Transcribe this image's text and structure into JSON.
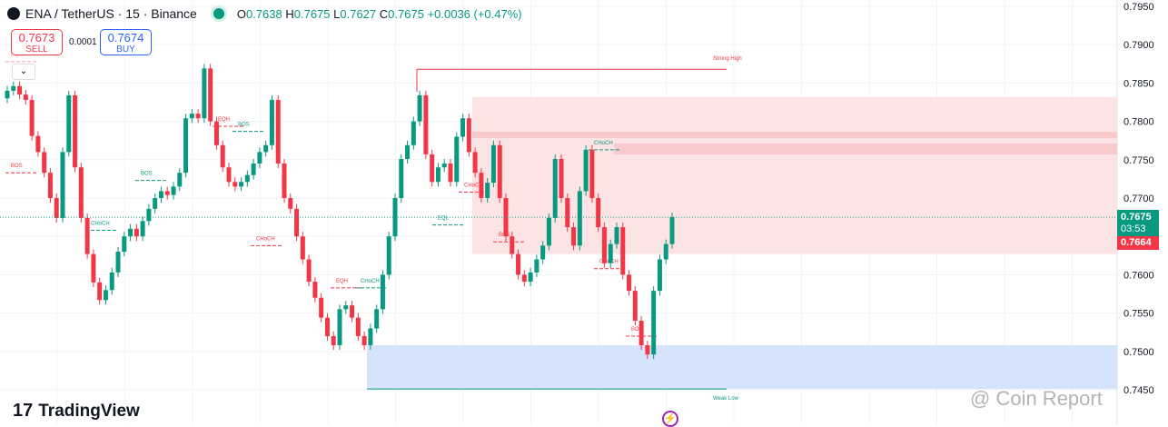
{
  "header": {
    "symbol": "ENA / TetherUS · 15 · Binance",
    "open_label": "O",
    "open": "0.7638",
    "high_label": "H",
    "high": "0.7675",
    "low_label": "L",
    "low": "0.7627",
    "close_label": "C",
    "close": "0.7675",
    "change": "+0.0036 (+0.47%)"
  },
  "trade": {
    "sell_price": "0.7673",
    "sell_label": "SELL",
    "spread": "0.0001",
    "buy_price": "0.7674",
    "buy_label": "BUY"
  },
  "price_labels": {
    "last": "0.7675",
    "countdown": "03:53",
    "other": "0.7664"
  },
  "logo": "TradingView",
  "watermark": "@ Coin Report",
  "colors": {
    "up": "#089981",
    "down": "#f23645",
    "supply_zone": "#fce4e4",
    "demand_zone": "#d6e4fb"
  },
  "chart_data": {
    "type": "candlestick",
    "ylim": [
      0.745,
      0.795
    ],
    "y_ticks": [
      "0.7950",
      "0.7900",
      "0.7850",
      "0.7800",
      "0.7750",
      "0.7700",
      "0.7650",
      "0.7600",
      "0.7550",
      "0.7500",
      "0.7450"
    ],
    "grid": true,
    "open_first": 0.783,
    "closes": [
      0.784,
      0.7846,
      0.7835,
      0.7828,
      0.7781,
      0.776,
      0.7733,
      0.77,
      0.7674,
      0.776,
      0.7834,
      0.774,
      0.7674,
      0.7627,
      0.759,
      0.7567,
      0.758,
      0.7603,
      0.763,
      0.765,
      0.766,
      0.765,
      0.767,
      0.7686,
      0.77,
      0.7709,
      0.7704,
      0.7715,
      0.7733,
      0.7804,
      0.781,
      0.7804,
      0.7869,
      0.78,
      0.7769,
      0.774,
      0.7721,
      0.7715,
      0.7721,
      0.773,
      0.7745,
      0.776,
      0.7769,
      0.7828,
      0.7745,
      0.77,
      0.7686,
      0.765,
      0.762,
      0.7591,
      0.757,
      0.7544,
      0.752,
      0.7508,
      0.7555,
      0.756,
      0.7544,
      0.752,
      0.7508,
      0.753,
      0.7555,
      0.76,
      0.765,
      0.77,
      0.7751,
      0.7769,
      0.78,
      0.7834,
      0.7757,
      0.7721,
      0.774,
      0.7745,
      0.7721,
      0.778,
      0.7804,
      0.776,
      0.7733,
      0.77,
      0.772,
      0.7769,
      0.77,
      0.765,
      0.7627,
      0.76,
      0.7591,
      0.7603,
      0.762,
      0.7638,
      0.7674,
      0.7751,
      0.77,
      0.7662,
      0.7638,
      0.7709,
      0.7763,
      0.77,
      0.7662,
      0.7615,
      0.764,
      0.7662,
      0.76,
      0.7579,
      0.754,
      0.7508,
      0.7496,
      0.7579,
      0.762,
      0.764,
      0.7675
    ],
    "zones": [
      {
        "kind": "supply",
        "top": 0.7832,
        "bottom": 0.7627
      },
      {
        "kind": "demand",
        "top": 0.7508,
        "bottom": 0.7451
      }
    ],
    "levels": [
      {
        "label": "Strong High",
        "price": 0.7868,
        "color": "#f23645"
      },
      {
        "label": "Weak Low",
        "price": 0.7451,
        "color": "#089981"
      }
    ],
    "structure_labels": [
      {
        "text": "EQH",
        "price": 0.7885,
        "color": "#f7a1a8"
      },
      {
        "text": "BOS",
        "price": 0.774,
        "color": "#f23645"
      },
      {
        "text": "BOS",
        "price": 0.773,
        "color": "#089981"
      },
      {
        "text": "CHoCH",
        "price": 0.7665,
        "color": "#089981"
      },
      {
        "text": "EQH",
        "price": 0.7796,
        "color": "#f23645"
      },
      {
        "text": "BOS",
        "price": 0.7794,
        "color": "#089981"
      },
      {
        "text": "CHoCH",
        "price": 0.7645,
        "color": "#f23645"
      },
      {
        "text": "EQH",
        "price": 0.759,
        "color": "#f23645"
      },
      {
        "text": "CHoCH",
        "price": 0.759,
        "color": "#089981"
      },
      {
        "text": "EQL",
        "price": 0.7672,
        "color": "#089981"
      },
      {
        "text": "CHoCH",
        "price": 0.7715,
        "color": "#f23645"
      },
      {
        "text": "BOS",
        "price": 0.765,
        "color": "#f23645"
      },
      {
        "text": "CHoCH",
        "price": 0.777,
        "color": "#089981"
      },
      {
        "text": "CHoCH",
        "price": 0.7615,
        "color": "#f23645"
      },
      {
        "text": "BOS",
        "price": 0.7527,
        "color": "#f23645"
      }
    ]
  }
}
